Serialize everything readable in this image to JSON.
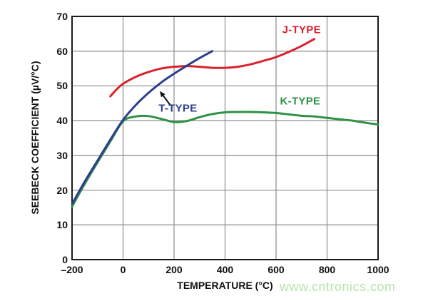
{
  "watermark": {
    "text": "www.cntronics.com",
    "color": "#b7e3ac"
  },
  "axes": {
    "xlabel": "TEMPERATURE (°C)",
    "ylabel": "SEEBECK COEFFICIENT (µV/°C)"
  },
  "colors": {
    "grid": "#8c8c8c",
    "frame": "#1a1a1a",
    "text": "#111111",
    "background": "#ffffff"
  },
  "chart_data": {
    "type": "line",
    "title": "",
    "xlabel": "TEMPERATURE (°C)",
    "ylabel": "SEEBECK COEFFICIENT (µV/°C)",
    "xlim": [
      -200,
      1000
    ],
    "ylim": [
      0,
      70
    ],
    "x_ticks": [
      -200,
      0,
      200,
      400,
      600,
      800,
      1000
    ],
    "x_tick_labels": [
      "–200",
      "0",
      "200",
      "400",
      "600",
      "800",
      "1000"
    ],
    "y_ticks": [
      0,
      10,
      20,
      30,
      40,
      50,
      60,
      70
    ],
    "y_tick_labels": [
      "0",
      "10",
      "20",
      "30",
      "40",
      "50",
      "60",
      "70"
    ],
    "grid": true,
    "legend": "inline-labels",
    "series": [
      {
        "name": "K-TYPE",
        "color": "#2e9245",
        "label_pos": [
          695,
          45.5
        ],
        "points": [
          [
            -200,
            15.3
          ],
          [
            -150,
            21.8
          ],
          [
            -100,
            28.0
          ],
          [
            -50,
            34.0
          ],
          [
            0,
            39.8
          ],
          [
            50,
            41.2
          ],
          [
            100,
            41.3
          ],
          [
            150,
            40.5
          ],
          [
            200,
            39.6
          ],
          [
            250,
            39.9
          ],
          [
            300,
            41.0
          ],
          [
            350,
            41.9
          ],
          [
            400,
            42.4
          ],
          [
            450,
            42.5
          ],
          [
            500,
            42.5
          ],
          [
            550,
            42.4
          ],
          [
            600,
            42.2
          ],
          [
            650,
            41.8
          ],
          [
            700,
            41.4
          ],
          [
            750,
            41.2
          ],
          [
            800,
            40.8
          ],
          [
            850,
            40.4
          ],
          [
            900,
            40.0
          ],
          [
            950,
            39.4
          ],
          [
            1000,
            38.9
          ]
        ]
      },
      {
        "name": "J-TYPE",
        "color": "#d8232e",
        "label_pos": [
          700,
          66
        ],
        "points": [
          [
            -50,
            47.0
          ],
          [
            -25,
            49.0
          ],
          [
            0,
            50.6
          ],
          [
            50,
            52.6
          ],
          [
            100,
            54.0
          ],
          [
            150,
            55.0
          ],
          [
            200,
            55.5
          ],
          [
            250,
            55.7
          ],
          [
            300,
            55.5
          ],
          [
            350,
            55.2
          ],
          [
            400,
            55.2
          ],
          [
            450,
            55.5
          ],
          [
            500,
            56.2
          ],
          [
            550,
            57.2
          ],
          [
            600,
            58.3
          ],
          [
            650,
            59.8
          ],
          [
            700,
            61.5
          ],
          [
            750,
            63.5
          ]
        ]
      },
      {
        "name": "T-TYPE",
        "color": "#2c3e8f",
        "label_pos": [
          215,
          43.5
        ],
        "points": [
          [
            -200,
            16.0
          ],
          [
            -150,
            22.5
          ],
          [
            -100,
            28.5
          ],
          [
            -50,
            34.5
          ],
          [
            0,
            40.2
          ],
          [
            50,
            44.5
          ],
          [
            100,
            48.0
          ],
          [
            150,
            51.0
          ],
          [
            200,
            53.5
          ],
          [
            250,
            55.8
          ],
          [
            300,
            58.0
          ],
          [
            350,
            60.0
          ]
        ]
      }
    ],
    "annotations": [
      {
        "type": "arrow",
        "color": "#111111",
        "from": [
          185,
          44.5
        ],
        "to": [
          144,
          48.5
        ]
      }
    ]
  }
}
